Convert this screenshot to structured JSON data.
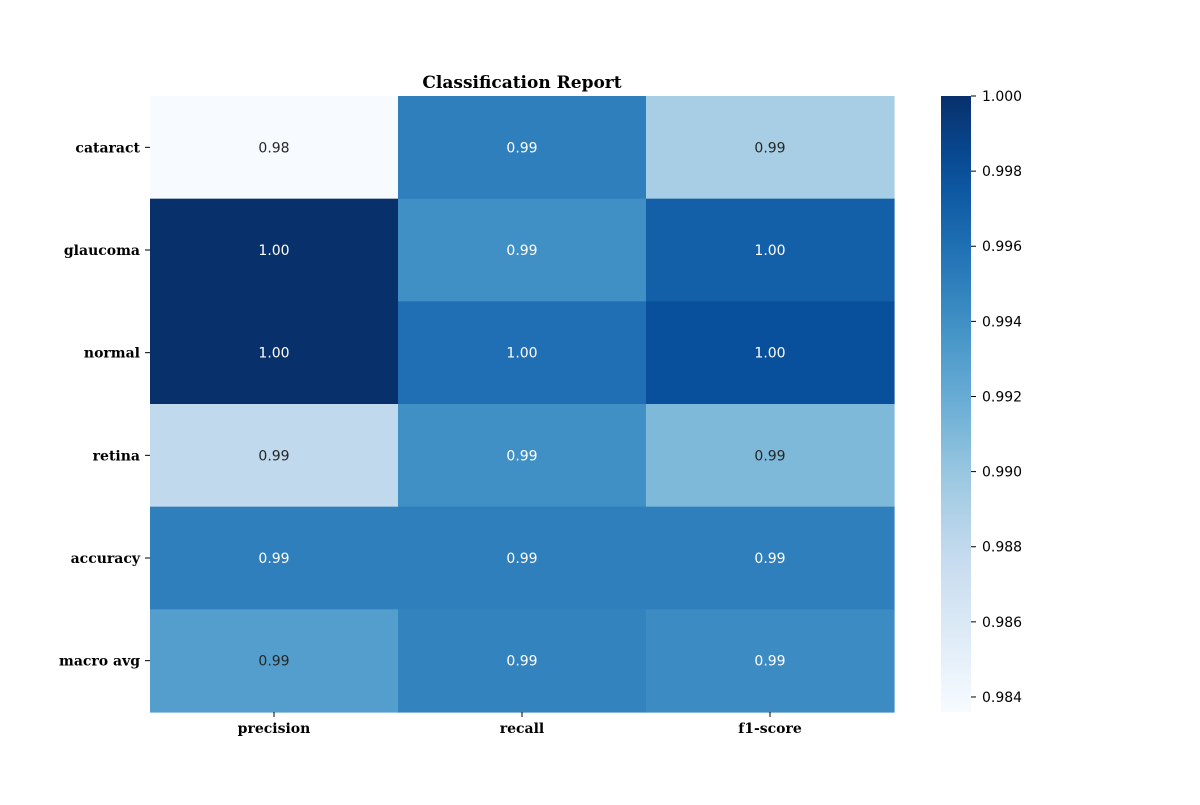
{
  "chart_data": {
    "type": "heatmap",
    "title": "Classification Report",
    "columns": [
      "precision",
      "recall",
      "f1-score"
    ],
    "rows": [
      "cataract",
      "glaucoma",
      "normal",
      "retina",
      "accuracy",
      "macro avg"
    ],
    "values": [
      [
        0.9836,
        0.995,
        0.9893
      ],
      [
        1.0,
        0.994,
        0.997
      ],
      [
        1.0,
        0.996,
        0.998
      ],
      [
        0.988,
        0.994,
        0.991
      ],
      [
        0.995,
        0.995,
        0.995
      ],
      [
        0.993,
        0.9948,
        0.9942
      ]
    ],
    "annotations": [
      [
        "0.98",
        "0.99",
        "0.99"
      ],
      [
        "1.00",
        "0.99",
        "1.00"
      ],
      [
        "1.00",
        "1.00",
        "1.00"
      ],
      [
        "0.99",
        "0.99",
        "0.99"
      ],
      [
        "0.99",
        "0.99",
        "0.99"
      ],
      [
        "0.99",
        "0.99",
        "0.99"
      ]
    ],
    "colormap": "Blues",
    "vmin": 0.9836,
    "vmax": 1.0,
    "colorbar_ticks": [
      "0.984",
      "0.986",
      "0.988",
      "0.990",
      "0.992",
      "0.994",
      "0.996",
      "0.998",
      "1.000"
    ],
    "annotation_colors": {
      "dark": "#262626",
      "light": "#ffffff"
    }
  }
}
